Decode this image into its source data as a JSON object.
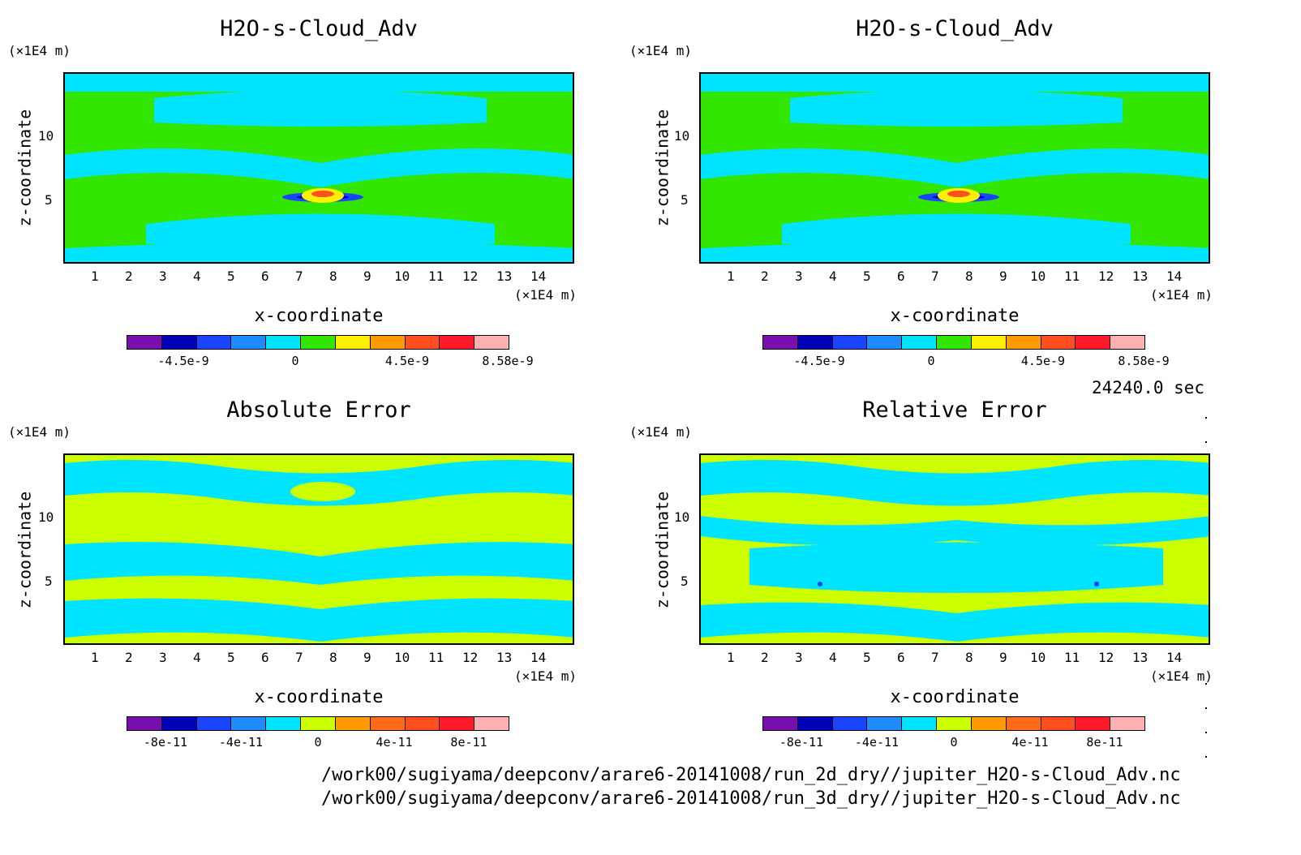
{
  "colors": {
    "main": [
      "#7a0fb0",
      "#0000b4",
      "#1a45ff",
      "#1e8bff",
      "#00e4ff",
      "#33e600",
      "#ffef00",
      "#ff9a00",
      "#ff4f1f",
      "#ff1a2a",
      "#ffb0b0"
    ],
    "error": [
      "#7a0fb0",
      "#0000b4",
      "#1a45ff",
      "#1e8bff",
      "#00e4ff",
      "#ccff00",
      "#ff9a00",
      "#ff6a18",
      "#ff4f1f",
      "#ff1a2a",
      "#ffb0b0"
    ]
  },
  "time_label": "24240.0 sec",
  "footer": {
    "line1": "/work00/sugiyama/deepconv/arare6-20141008/run_2d_dry//jupiter_H2O-s-Cloud_Adv.nc",
    "line2": "/work00/sugiyama/deepconv/arare6-20141008/run_3d_dry//jupiter_H2O-s-Cloud_Adv.nc"
  },
  "axes": {
    "x_unit": "(×1E4 m)",
    "y_unit": "(×1E4 m)",
    "xlabel": "x-coordinate",
    "ylabel": "z-coordinate",
    "x_ticks": [
      "1",
      "2",
      "3",
      "4",
      "5",
      "6",
      "7",
      "8",
      "9",
      "10",
      "11",
      "12",
      "13",
      "14"
    ],
    "y_ticks": [
      "5",
      "10"
    ]
  },
  "chart_data": [
    {
      "type": "heatmap",
      "title": "H2O-s-Cloud_Adv",
      "xlabel": "x-coordinate",
      "ylabel": "z-coordinate",
      "xlim": [
        0,
        15
      ],
      "ylim": [
        0,
        15
      ],
      "colorbar": {
        "ticks": [
          "-4.5e-9",
          "0",
          "4.5e-9",
          "8.58e-9"
        ],
        "colormap": "main"
      }
    },
    {
      "type": "heatmap",
      "title": "H2O-s-Cloud_Adv",
      "xlabel": "x-coordinate",
      "ylabel": "z-coordinate",
      "xlim": [
        0,
        15
      ],
      "ylim": [
        0,
        15
      ],
      "colorbar": {
        "ticks": [
          "-4.5e-9",
          "0",
          "4.5e-9",
          "8.58e-9"
        ],
        "colormap": "main"
      }
    },
    {
      "type": "heatmap",
      "title": "Absolute Error",
      "xlabel": "x-coordinate",
      "ylabel": "z-coordinate",
      "xlim": [
        0,
        15
      ],
      "ylim": [
        0,
        15
      ],
      "colorbar": {
        "ticks": [
          "-8e-11",
          "-4e-11",
          "0",
          "4e-11",
          "8e-11"
        ],
        "colormap": "error"
      }
    },
    {
      "type": "heatmap",
      "title": "Relative Error",
      "xlabel": "x-coordinate",
      "ylabel": "z-coordinate",
      "xlim": [
        0,
        15
      ],
      "ylim": [
        0,
        15
      ],
      "colorbar": {
        "ticks": [
          "-8e-11",
          "-4e-11",
          "0",
          "4e-11",
          "8e-11"
        ],
        "colormap": "error"
      }
    }
  ]
}
